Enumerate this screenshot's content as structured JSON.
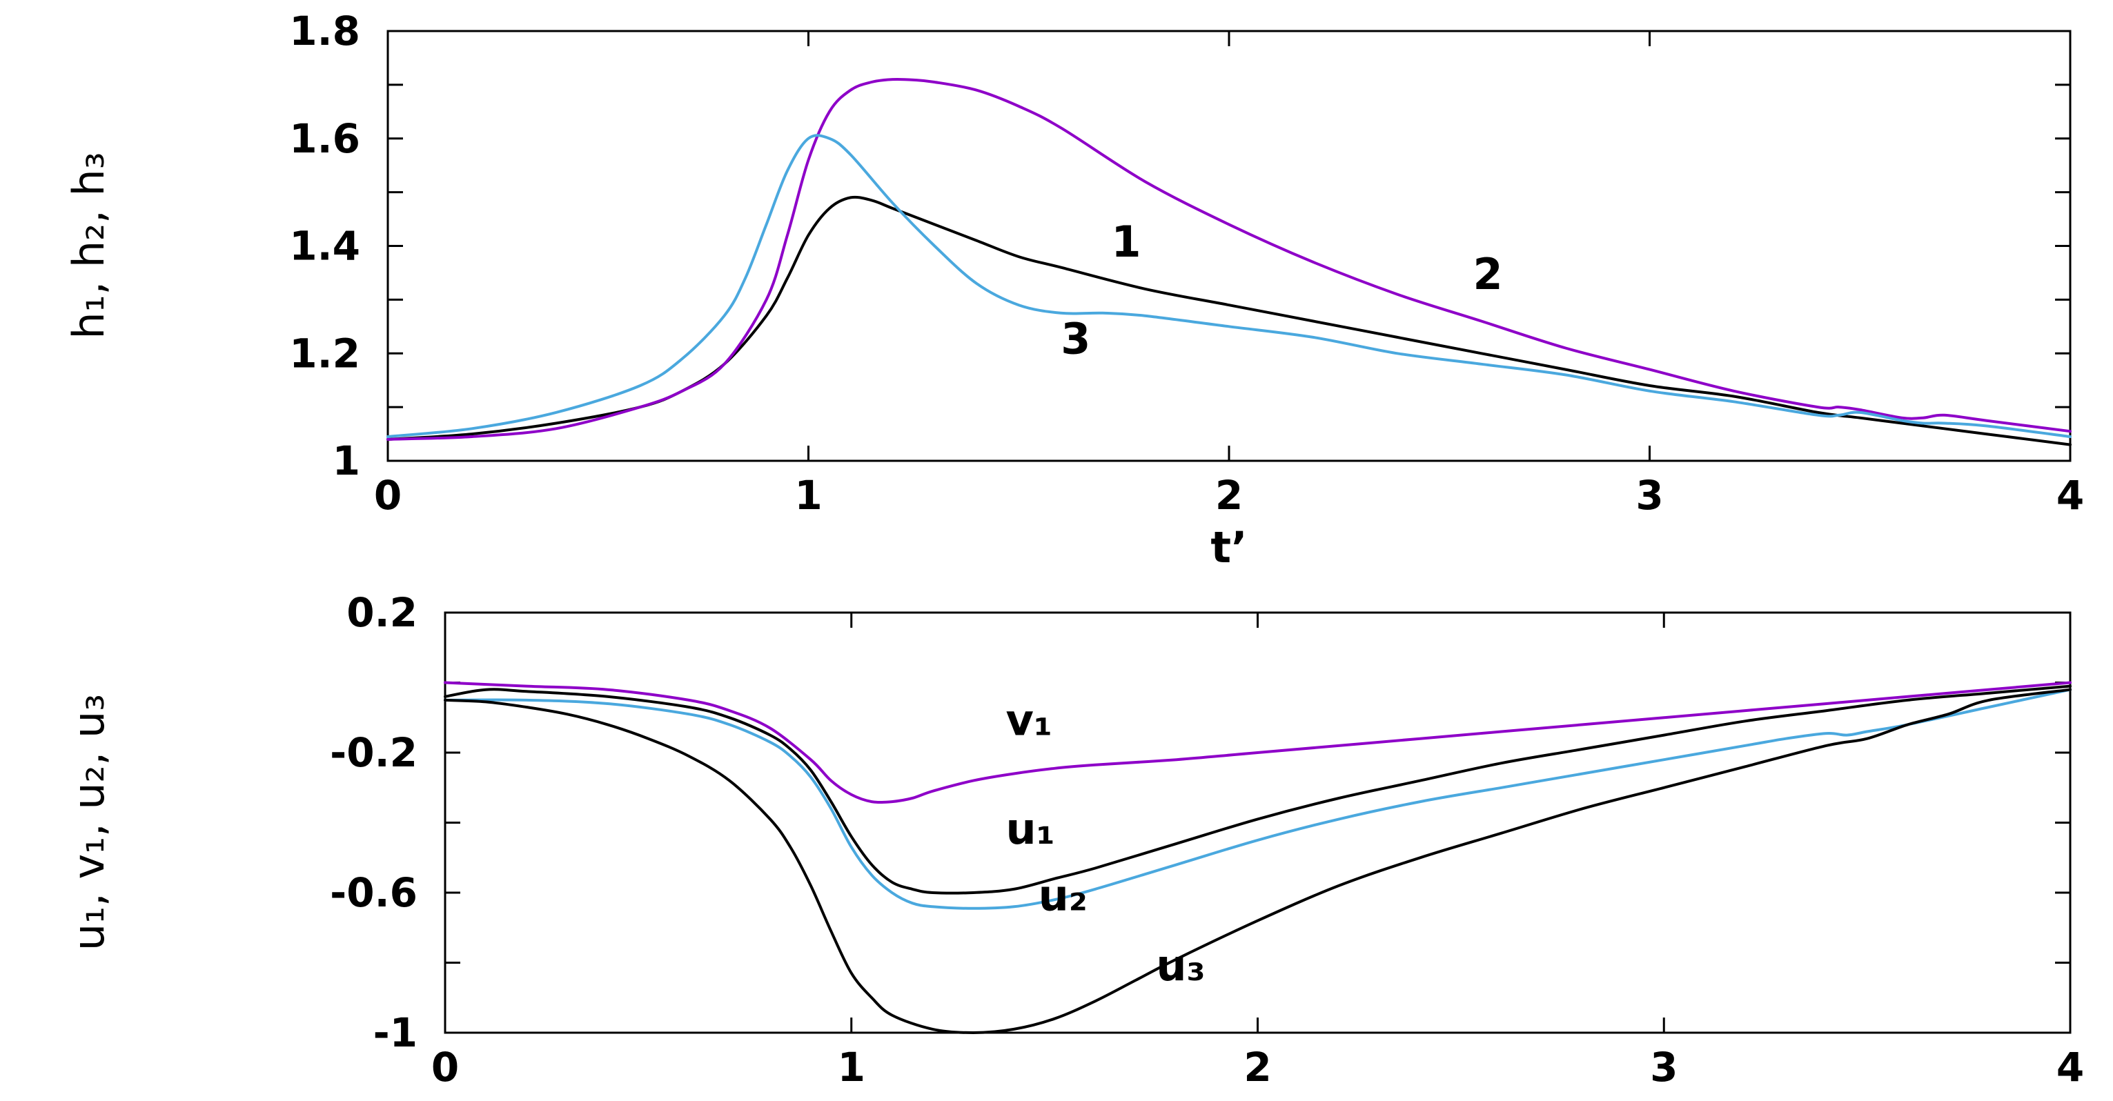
{
  "chart_data": [
    {
      "type": "line",
      "xlabel": "t’",
      "ylabel": "h₁, h₂, h₃",
      "xlim": [
        0,
        4
      ],
      "ylim": [
        1,
        1.8
      ],
      "x_ticks": [
        0,
        1,
        2,
        3,
        4
      ],
      "x_tick_labels": [
        "0",
        "1",
        "2",
        "3",
        "4"
      ],
      "y_ticks": [
        1,
        1.2,
        1.4,
        1.6,
        1.8
      ],
      "y_tick_labels": [
        "1",
        "1.2",
        "1.4",
        "1.6",
        "1.8"
      ],
      "y_minor_step": 0.1,
      "grid": false,
      "series": [
        {
          "name": "1",
          "color": "#000000",
          "label_at": [
            1.72,
            1.38
          ],
          "x": [
            0,
            0.2,
            0.4,
            0.6,
            0.7,
            0.8,
            0.9,
            0.95,
            1.0,
            1.05,
            1.1,
            1.15,
            1.2,
            1.3,
            1.4,
            1.5,
            1.6,
            1.8,
            2.0,
            2.2,
            2.4,
            2.6,
            2.8,
            3.0,
            3.2,
            3.4,
            3.5,
            3.6,
            3.7,
            3.8,
            4.0
          ],
          "y": [
            1.04,
            1.05,
            1.07,
            1.1,
            1.13,
            1.18,
            1.27,
            1.34,
            1.42,
            1.47,
            1.49,
            1.485,
            1.47,
            1.44,
            1.41,
            1.38,
            1.36,
            1.32,
            1.29,
            1.26,
            1.23,
            1.2,
            1.17,
            1.14,
            1.12,
            1.09,
            1.08,
            1.07,
            1.06,
            1.05,
            1.03
          ]
        },
        {
          "name": "2",
          "color": "#8e00c8",
          "label_at": [
            2.58,
            1.32
          ],
          "x": [
            0,
            0.2,
            0.4,
            0.6,
            0.7,
            0.8,
            0.9,
            0.95,
            1.0,
            1.05,
            1.1,
            1.15,
            1.2,
            1.25,
            1.3,
            1.4,
            1.5,
            1.6,
            1.8,
            2.0,
            2.2,
            2.4,
            2.6,
            2.8,
            3.0,
            3.2,
            3.4,
            3.45,
            3.5,
            3.6,
            3.65,
            3.7,
            3.8,
            4.0
          ],
          "y": [
            1.04,
            1.045,
            1.06,
            1.1,
            1.13,
            1.18,
            1.3,
            1.42,
            1.56,
            1.65,
            1.69,
            1.705,
            1.71,
            1.709,
            1.705,
            1.69,
            1.66,
            1.62,
            1.52,
            1.44,
            1.37,
            1.31,
            1.26,
            1.21,
            1.17,
            1.13,
            1.1,
            1.1,
            1.095,
            1.08,
            1.08,
            1.085,
            1.075,
            1.055
          ]
        },
        {
          "name": "3",
          "color": "#4aa8de",
          "label_at": [
            1.6,
            1.2
          ],
          "x": [
            0,
            0.2,
            0.4,
            0.6,
            0.7,
            0.8,
            0.85,
            0.9,
            0.95,
            1.0,
            1.05,
            1.1,
            1.2,
            1.3,
            1.4,
            1.5,
            1.6,
            1.7,
            1.8,
            2.0,
            2.2,
            2.4,
            2.6,
            2.8,
            3.0,
            3.2,
            3.4,
            3.45,
            3.5,
            3.6,
            3.65,
            3.7,
            3.8,
            4.0
          ],
          "y": [
            1.045,
            1.06,
            1.09,
            1.14,
            1.19,
            1.27,
            1.34,
            1.44,
            1.54,
            1.6,
            1.6,
            1.57,
            1.48,
            1.4,
            1.33,
            1.29,
            1.275,
            1.275,
            1.27,
            1.25,
            1.23,
            1.2,
            1.18,
            1.16,
            1.13,
            1.11,
            1.085,
            1.085,
            1.09,
            1.075,
            1.07,
            1.07,
            1.065,
            1.045
          ]
        }
      ]
    },
    {
      "type": "line",
      "xlabel": "",
      "ylabel": "u₁, v₁, u₂, u₃",
      "xlim": [
        0,
        4
      ],
      "ylim": [
        -1,
        0.2
      ],
      "x_ticks": [
        0,
        1,
        2,
        3,
        4
      ],
      "x_tick_labels": [
        "0",
        "1",
        "2",
        "3",
        "4"
      ],
      "y_ticks": [
        -1,
        -0.6,
        -0.2,
        0.2
      ],
      "y_tick_labels": [
        "-1",
        "-0.6",
        "-0.2",
        "0.2"
      ],
      "y_minor_step": 0.2,
      "grid": false,
      "series": [
        {
          "name": "v₁",
          "color": "#8e00c8",
          "label_at": [
            1.38,
            -0.15
          ],
          "x": [
            0,
            0.2,
            0.4,
            0.6,
            0.7,
            0.8,
            0.9,
            0.95,
            1.0,
            1.05,
            1.1,
            1.15,
            1.2,
            1.3,
            1.4,
            1.5,
            1.6,
            1.8,
            2.0,
            2.4,
            2.8,
            3.2,
            3.6,
            4.0
          ],
          "y": [
            0.0,
            -0.01,
            -0.02,
            -0.05,
            -0.08,
            -0.13,
            -0.22,
            -0.28,
            -0.32,
            -0.34,
            -0.34,
            -0.33,
            -0.31,
            -0.28,
            -0.26,
            -0.245,
            -0.235,
            -0.22,
            -0.2,
            -0.16,
            -0.12,
            -0.08,
            -0.04,
            0.0
          ]
        },
        {
          "name": "u₁",
          "color": "#000000",
          "label_at": [
            1.38,
            -0.46
          ],
          "x": [
            0,
            0.1,
            0.2,
            0.4,
            0.6,
            0.7,
            0.8,
            0.85,
            0.9,
            0.95,
            1.0,
            1.05,
            1.1,
            1.15,
            1.2,
            1.3,
            1.4,
            1.5,
            1.6,
            1.8,
            2.0,
            2.2,
            2.4,
            2.6,
            2.8,
            3.0,
            3.2,
            3.4,
            3.6,
            3.8,
            4.0
          ],
          "y": [
            -0.04,
            -0.02,
            -0.025,
            -0.04,
            -0.07,
            -0.1,
            -0.15,
            -0.19,
            -0.25,
            -0.34,
            -0.44,
            -0.52,
            -0.57,
            -0.59,
            -0.6,
            -0.6,
            -0.59,
            -0.56,
            -0.53,
            -0.46,
            -0.39,
            -0.33,
            -0.28,
            -0.23,
            -0.19,
            -0.15,
            -0.11,
            -0.08,
            -0.05,
            -0.03,
            -0.01
          ]
        },
        {
          "name": "u₂",
          "color": "#4aa8de",
          "label_at": [
            1.46,
            -0.65
          ],
          "x": [
            0,
            0.2,
            0.4,
            0.6,
            0.7,
            0.8,
            0.85,
            0.9,
            0.95,
            1.0,
            1.05,
            1.1,
            1.15,
            1.2,
            1.3,
            1.4,
            1.5,
            1.6,
            1.8,
            2.0,
            2.2,
            2.4,
            2.6,
            2.8,
            3.0,
            3.2,
            3.3,
            3.4,
            3.45,
            3.5,
            3.6,
            3.8,
            4.0
          ],
          "y": [
            -0.05,
            -0.05,
            -0.06,
            -0.09,
            -0.12,
            -0.17,
            -0.21,
            -0.27,
            -0.36,
            -0.47,
            -0.55,
            -0.6,
            -0.63,
            -0.64,
            -0.645,
            -0.64,
            -0.62,
            -0.59,
            -0.52,
            -0.45,
            -0.39,
            -0.34,
            -0.3,
            -0.26,
            -0.22,
            -0.18,
            -0.16,
            -0.145,
            -0.15,
            -0.14,
            -0.12,
            -0.07,
            -0.02
          ]
        },
        {
          "name": "u₃",
          "color": "#000000",
          "label_at": [
            1.75,
            -0.85
          ],
          "x": [
            0,
            0.1,
            0.2,
            0.3,
            0.4,
            0.5,
            0.6,
            0.7,
            0.8,
            0.85,
            0.9,
            0.95,
            1.0,
            1.05,
            1.1,
            1.2,
            1.3,
            1.4,
            1.5,
            1.6,
            1.7,
            1.8,
            2.0,
            2.2,
            2.4,
            2.6,
            2.8,
            3.0,
            3.2,
            3.4,
            3.5,
            3.6,
            3.7,
            3.8,
            4.0
          ],
          "y": [
            -0.05,
            -0.055,
            -0.07,
            -0.09,
            -0.12,
            -0.16,
            -0.21,
            -0.28,
            -0.39,
            -0.47,
            -0.58,
            -0.71,
            -0.83,
            -0.9,
            -0.95,
            -0.99,
            -1.0,
            -0.99,
            -0.96,
            -0.91,
            -0.85,
            -0.79,
            -0.68,
            -0.58,
            -0.5,
            -0.43,
            -0.36,
            -0.3,
            -0.24,
            -0.18,
            -0.16,
            -0.12,
            -0.09,
            -0.05,
            -0.02
          ]
        }
      ]
    }
  ]
}
